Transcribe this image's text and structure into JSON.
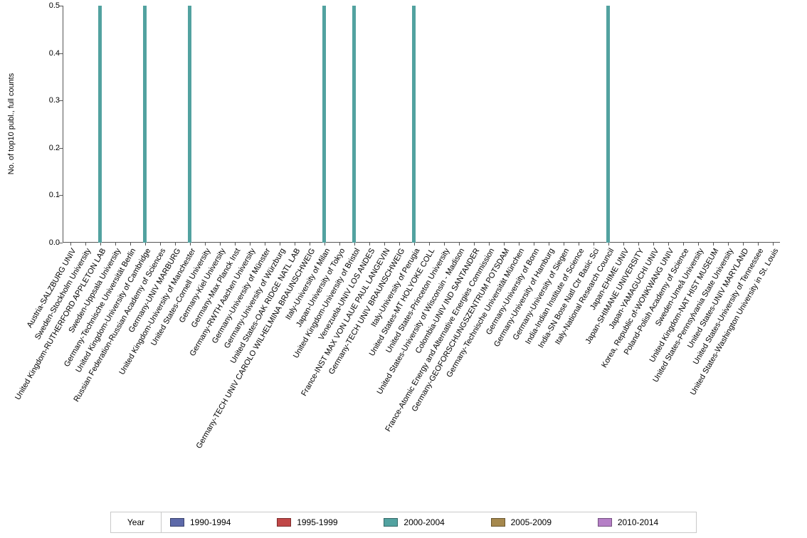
{
  "chart_data": {
    "type": "bar",
    "title": "",
    "ylabel": "No. of top10 publ., full counts",
    "xlabel": "",
    "ylim": [
      0,
      0.5
    ],
    "yticks": [
      0.0,
      0.1,
      0.2,
      0.3,
      0.4,
      0.5
    ],
    "grid": false,
    "legend_position": "bottom",
    "legend_title": "Year",
    "categories": [
      "Austria-SALZBURG UNIV",
      "Sweden-Stockholm University",
      "United Kingdom-RUTHERFORD APPLETON LAB",
      "Sweden-Uppsala University",
      "Germany-Technische Universität Berlin",
      "United Kingdom-University of Cambridge",
      "Russian Federation-Russian Academy of Sciences",
      "Germany-UNIV MARBURG",
      "United Kingdom-University of Manchester",
      "United States-Cornell University",
      "Germany-Kiel University",
      "Germany-Max Planck Inst",
      "Germany-RWTH Aachen University",
      "Germany-University of Münster",
      "Germany-University of Würzburg",
      "United States-OAK RIDGE NATL LAB",
      "Germany-TECH UNIV CAROLO WILHELMINA BRAUNSCHWEIG",
      "Italy-University of Milan",
      "Japan-University of Tokyo",
      "United Kingdom-University of Bristol",
      "Venezuela-UNIV LOS ANDES",
      "France-INST MAX VON LAUE PAUL LANGEVIN",
      "Germany-TECH UNIV BRAUNSCHWEIG",
      "Italy-University of Perugia",
      "United States-MT HOLYOKE COLL",
      "United States-Princeton University",
      "United States-University of Wisconsin - Madison",
      "Colombia-UNIV IND SANTANDER",
      "France-Atomic Energy and Alternative Energies Commission",
      "Germany-GEOFORSCHUNGSZENTRUM POTSDAM",
      "Germany-Technische Universität München",
      "Germany-University of Bonn",
      "Germany-University of Hamburg",
      "Germany-University of Siegen",
      "India-Indian Institute of Science",
      "India-SN Bose Natl Ctr Basic Sci",
      "Italy-National Research Council",
      "Japan-EHIME UNIV",
      "Japan-SHIMANE UNIVERSITY",
      "Japan-YAMAGUCHI UNIV",
      "Korea, Republic of-WONKWANG UNIV",
      "Poland-Polish Academy of Science",
      "Sweden-Umeå University",
      "United Kingdom-NAT HIST MUSEUM",
      "United States-Pennsylvania State University",
      "United States-UNIV MARYLAND",
      "United States-University of Tennessee",
      "United States-Washington University in St. Louis"
    ],
    "series": [
      {
        "name": "1990-1994",
        "color": "#5D69A9",
        "values": [
          0,
          0,
          0,
          0,
          0,
          0,
          0,
          0,
          0,
          0,
          0,
          0,
          0,
          0,
          0,
          0,
          0,
          0,
          0,
          0,
          0,
          0,
          0,
          0,
          0,
          0,
          0,
          0,
          0,
          0,
          0,
          0,
          0,
          0,
          0,
          0,
          0,
          0,
          0,
          0,
          0,
          0,
          0,
          0,
          0,
          0,
          0,
          0
        ]
      },
      {
        "name": "1995-1999",
        "color": "#C04747",
        "values": [
          0,
          0,
          0,
          0,
          0,
          0,
          0,
          0,
          0,
          0,
          0,
          0,
          0,
          0,
          0,
          0,
          0,
          0,
          0,
          0,
          0,
          0,
          0,
          0,
          0,
          0,
          0,
          0,
          0,
          0,
          0,
          0,
          0,
          0,
          0,
          0,
          0,
          0,
          0,
          0,
          0,
          0,
          0,
          0,
          0,
          0,
          0,
          0
        ]
      },
      {
        "name": "2000-2004",
        "color": "#52A2A0",
        "values": [
          0,
          0,
          0.5,
          0,
          0,
          0.5,
          0,
          0,
          0.5,
          0,
          0,
          0,
          0,
          0,
          0,
          0,
          0,
          0.5,
          0,
          0.5,
          0,
          0,
          0,
          0.5,
          0,
          0,
          0,
          0,
          0,
          0,
          0,
          0,
          0,
          0,
          0,
          0,
          0.5,
          0,
          0,
          0,
          0,
          0,
          0,
          0,
          0,
          0,
          0,
          0
        ]
      },
      {
        "name": "2005-2009",
        "color": "#A5884D",
        "values": [
          0,
          0,
          0,
          0,
          0,
          0,
          0,
          0,
          0,
          0,
          0,
          0,
          0,
          0,
          0,
          0,
          0,
          0,
          0,
          0,
          0,
          0,
          0,
          0,
          0,
          0,
          0,
          0,
          0,
          0,
          0,
          0,
          0,
          0,
          0,
          0,
          0,
          0,
          0,
          0,
          0,
          0,
          0,
          0,
          0,
          0,
          0,
          0
        ]
      },
      {
        "name": "2010-2014",
        "color": "#B57FC6",
        "values": [
          0,
          0,
          0,
          0,
          0,
          0,
          0,
          0,
          0,
          0,
          0,
          0,
          0,
          0,
          0,
          0,
          0,
          0,
          0,
          0,
          0,
          0,
          0,
          0,
          0,
          0,
          0,
          0,
          0,
          0,
          0,
          0,
          0,
          0,
          0,
          0,
          0,
          0,
          0,
          0,
          0,
          0,
          0,
          0,
          0,
          0,
          0,
          0
        ]
      }
    ]
  }
}
